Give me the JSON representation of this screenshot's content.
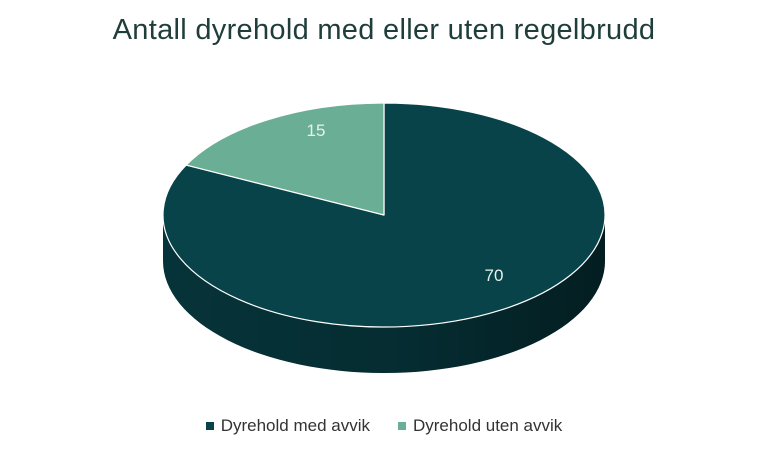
{
  "chart_data": {
    "type": "pie",
    "title": "Antall dyrehold med eller uten regelbrudd",
    "three_d": true,
    "categories": [
      "Dyrehold med avvik",
      "Dyrehold uten avvik"
    ],
    "values": [
      70,
      15
    ],
    "colors": [
      "#08434a",
      "#6aae96"
    ],
    "side_colors": [
      "#06363c",
      "#4f8a76"
    ],
    "legend_position": "bottom"
  }
}
